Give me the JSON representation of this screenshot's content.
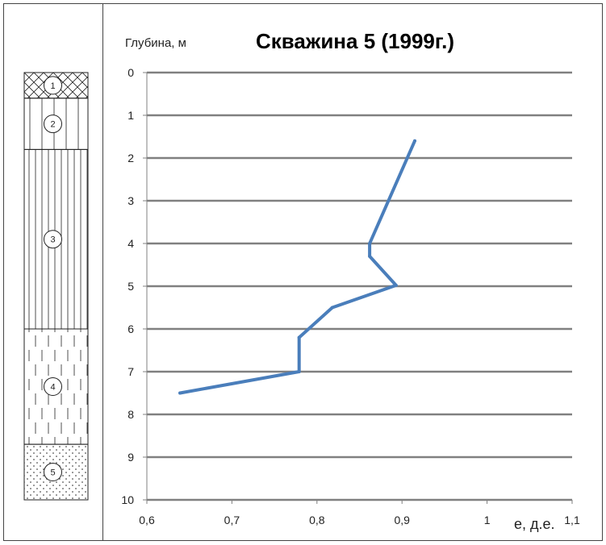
{
  "chart_data": {
    "type": "line",
    "title": "Скважина 5 (1999г.)",
    "ylabel": "Глубина, м",
    "xlabel": "е, д.е.",
    "xlim": [
      0.6,
      1.1
    ],
    "ylim": [
      0,
      10
    ],
    "y_inverted": true,
    "x_ticks": [
      "0,6",
      "0,7",
      "0,8",
      "0,9",
      "1",
      "1,1"
    ],
    "x_tick_values": [
      0.6,
      0.7,
      0.8,
      0.9,
      1.0,
      1.1
    ],
    "y_ticks": [
      "0",
      "1",
      "2",
      "3",
      "4",
      "5",
      "6",
      "7",
      "8",
      "9",
      "10"
    ],
    "y_tick_values": [
      0,
      1,
      2,
      3,
      4,
      5,
      6,
      7,
      8,
      9,
      10
    ],
    "grid": "horizontal",
    "series": [
      {
        "color": "#4a7ebb",
        "points": [
          {
            "x": 0.915,
            "y": 1.6
          },
          {
            "x": 0.862,
            "y": 4.0
          },
          {
            "x": 0.862,
            "y": 4.3
          },
          {
            "x": 0.893,
            "y": 4.98
          },
          {
            "x": 0.818,
            "y": 5.5
          },
          {
            "x": 0.779,
            "y": 6.2
          },
          {
            "x": 0.779,
            "y": 7.0
          },
          {
            "x": 0.639,
            "y": 7.5
          }
        ]
      }
    ]
  },
  "lithology_column": {
    "layers": [
      {
        "number": "1",
        "top": 0,
        "bottom": 0.6,
        "pattern": "crosshatch"
      },
      {
        "number": "2",
        "top": 0.6,
        "bottom": 1.8,
        "pattern": "vertical-lines"
      },
      {
        "number": "3",
        "top": 1.8,
        "bottom": 6.0,
        "pattern": "dense-vertical-lines"
      },
      {
        "number": "4",
        "top": 6.0,
        "bottom": 8.7,
        "pattern": "dashed-lines"
      },
      {
        "number": "5",
        "top": 8.7,
        "bottom": 10.0,
        "pattern": "dots"
      }
    ]
  },
  "colors": {
    "series": "#4a7ebb",
    "grid": "#808080",
    "axis": "#808080",
    "frame": "#444444"
  }
}
